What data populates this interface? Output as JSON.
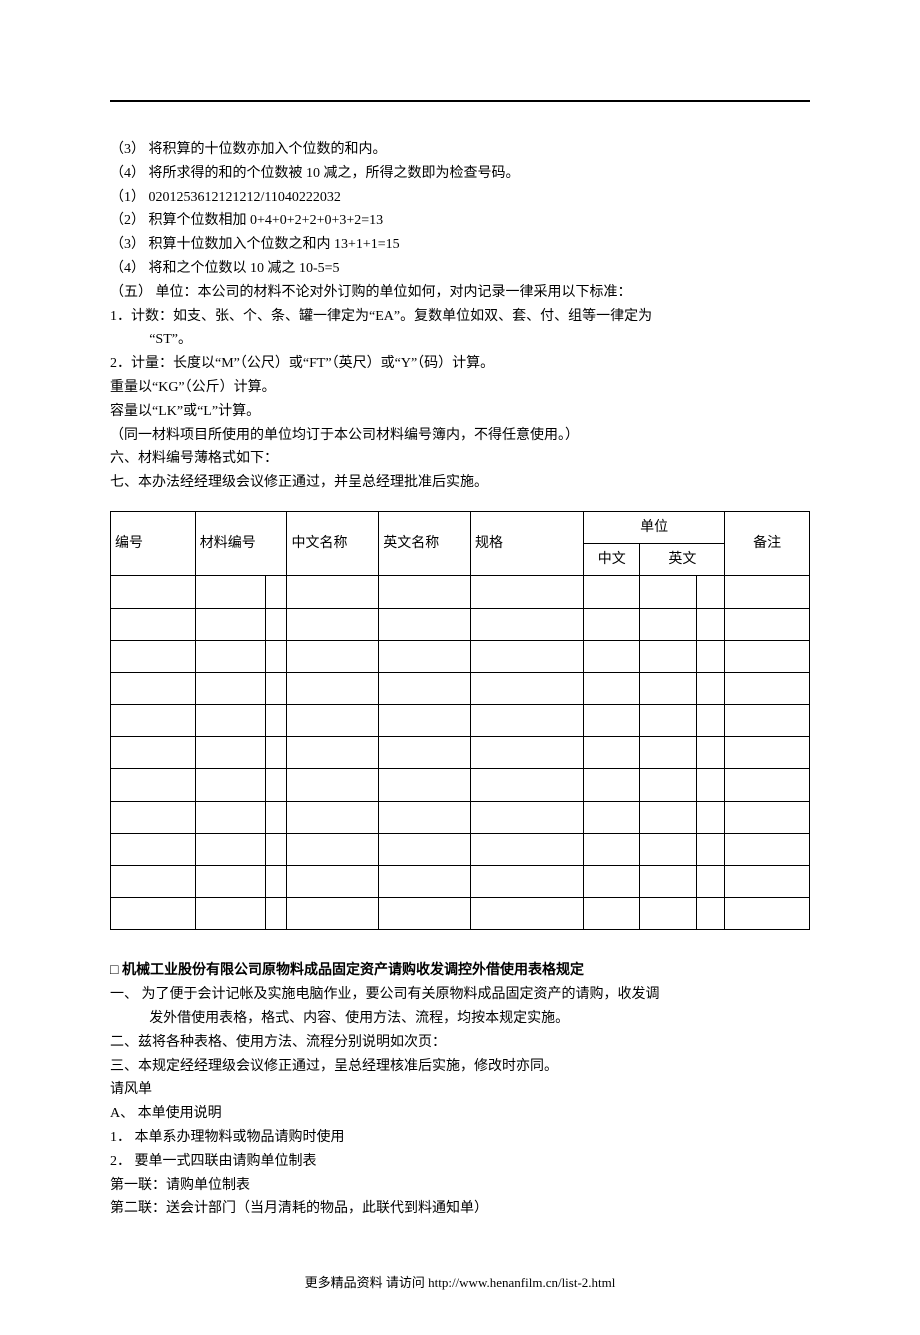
{
  "lines": {
    "l1": "（3） 将积算的十位数亦加入个位数的和内。",
    "l2": "（4） 将所求得的和的个位数被 10 减之，所得之数即为检查号码。",
    "l3": "（1）  0201253612121212/11040222032",
    "l4": "（2）  积算个位数相加 0+4+0+2+2+0+3+2=13",
    "l5": "（3）  积算十位数加入个位数之和内 13+1+1=15",
    "l6": "（4）  将和之个位数以 10 减之 10-5=5",
    "l7": "（五） 单位：本公司的材料不论对外订购的单位如何，对内记录一律采用以下标准：",
    "l8a": "1．计数：如支、张、个、条、罐一律定为“EA”。复数单位如双、套、付、组等一律定为",
    "l8b": "“ST”。",
    "l9": "2．计量：长度以“M”（公尺）或“FT”（英尺）或“Y”（码）计算。",
    "l10": "重量以“KG”（公斤）计算。",
    "l11": "容量以“LK”或“L”计算。",
    "l12": "（同一材料项目所使用的单位均订于本公司材料编号簿内，不得任意使用。）",
    "l13": "六、材料编号薄格式如下：",
    "l14": "七、本办法经经理级会议修正通过，并呈总经理批准后实施。"
  },
  "table": {
    "headers": {
      "c1": "编号",
      "c2": "材料编号",
      "c3": "中文名称",
      "c4": "英文名称",
      "c5": "规格",
      "c6": "单位",
      "c6a": "中文",
      "c6b": "英文",
      "c7": "备注"
    },
    "row_count": 11
  },
  "section2": {
    "square": "□",
    "title": "  机械工业股份有限公司原物料成品固定资产请购收发调控外借使用表格规定",
    "p1a": "一、 为了便于会计记帐及实施电脑作业，要公司有关原物料成品固定资产的请购，收发调",
    "p1b": "发外借使用表格，格式、内容、使用方法、流程，均按本规定实施。",
    "p2": "二、兹将各种表格、使用方法、流程分别说明如次页：",
    "p3": "三、本规定经经理级会议修正通过，呈总经理核准后实施，修改时亦同。",
    "p4": "请风单",
    "p5": "A、 本单使用说明",
    "p6": "1． 本单系办理物料或物品请购时使用",
    "p7": "2． 要单一式四联由请购单位制表",
    "p8": "第一联：请购单位制表",
    "p9": "第二联：送会计部门（当月清耗的物品，此联代到料通知单）"
  },
  "footer": "更多精品资料  请访问 http://www.henanfilm.cn/list-2.html"
}
